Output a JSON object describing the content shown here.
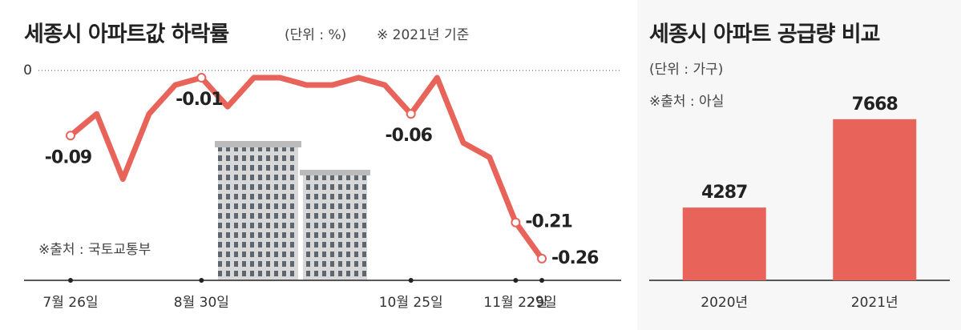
{
  "chart_data": [
    {
      "type": "line",
      "title": "세종시 아파트값 하락률",
      "subtitle": "(단위 : %)",
      "note": "※ 2021년 기준",
      "source": "※출처 : 국토교통부",
      "categories": [
        "7월 26일",
        null,
        null,
        null,
        null,
        "8월 30일",
        null,
        null,
        null,
        null,
        null,
        null,
        null,
        "10월 25일",
        null,
        null,
        null,
        "11월 22일",
        "29일"
      ],
      "values": [
        -0.09,
        -0.06,
        -0.15,
        -0.06,
        -0.02,
        -0.01,
        -0.05,
        -0.01,
        -0.01,
        -0.02,
        -0.02,
        -0.01,
        -0.02,
        -0.06,
        -0.01,
        -0.1,
        -0.12,
        -0.21,
        -0.26
      ],
      "value_labels": [
        "-0.09",
        null,
        null,
        null,
        null,
        "-0.01",
        null,
        null,
        null,
        null,
        null,
        null,
        null,
        "-0.06",
        null,
        null,
        null,
        "-0.21",
        "-0.26"
      ],
      "color": "#e8645a",
      "ylim": [
        -0.29,
        0
      ],
      "yticks": [
        0
      ]
    },
    {
      "type": "bar",
      "title": "세종시 아파트 공급량 비교",
      "subtitle": "(단위 : 가구)",
      "source": "※출처 : 아실",
      "categories": [
        "2020년",
        "2021년"
      ],
      "values": [
        4287,
        7668
      ],
      "color": "#e8645a",
      "ylim": [
        1500,
        8000
      ]
    }
  ]
}
